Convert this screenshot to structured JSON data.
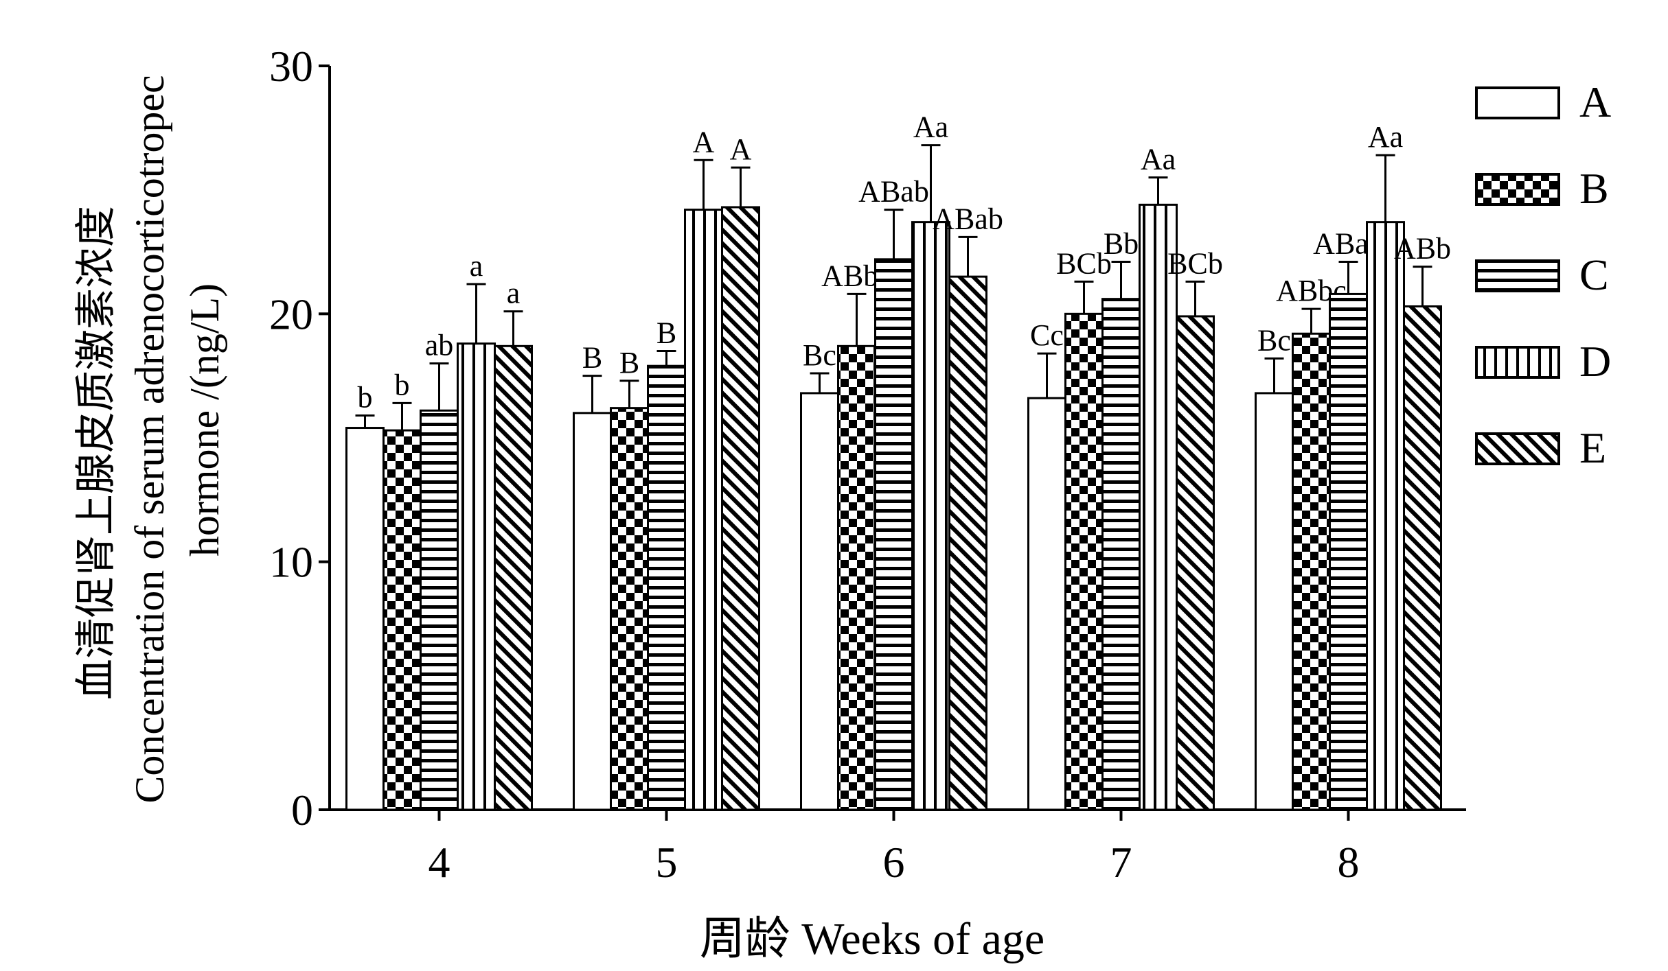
{
  "chart_data": {
    "type": "bar",
    "xlabel": "周龄 Weeks of age",
    "ylabel_cn": "血清促肾上腺皮质激素浓度",
    "ylabel_en_line1": "Concentration of serum adrenocorticotropec",
    "ylabel_en_line2": "hormone /(ng/L)",
    "ylim": [
      0,
      30
    ],
    "yticks": [
      "0",
      "10",
      "20",
      "30"
    ],
    "categories": [
      "4",
      "5",
      "6",
      "7",
      "8"
    ],
    "legend_position": "right",
    "series": [
      {
        "name": "A",
        "pattern": "white",
        "values": [
          15.4,
          16.0,
          16.8,
          16.6,
          16.8
        ],
        "errors": [
          0.5,
          1.5,
          0.8,
          1.8,
          1.4
        ],
        "labels": [
          "b",
          "B",
          "Bc",
          "Cc",
          "Bc"
        ]
      },
      {
        "name": "B",
        "pattern": "checker",
        "values": [
          15.3,
          16.2,
          18.7,
          20.0,
          19.2
        ],
        "errors": [
          1.1,
          1.1,
          2.1,
          1.3,
          1.0
        ],
        "labels": [
          "b",
          "B",
          "ABbc",
          "BCb",
          "ABbc"
        ]
      },
      {
        "name": "C",
        "pattern": "hstripe",
        "values": [
          16.1,
          17.9,
          22.2,
          20.6,
          20.8
        ],
        "errors": [
          1.9,
          0.6,
          2.0,
          1.5,
          1.3
        ],
        "labels": [
          "ab",
          "B",
          "ABab",
          "Bb",
          "ABab"
        ]
      },
      {
        "name": "D",
        "pattern": "vstripe",
        "values": [
          18.8,
          24.2,
          23.7,
          24.4,
          23.7
        ],
        "errors": [
          2.4,
          2.0,
          3.1,
          1.1,
          2.7
        ],
        "labels": [
          "a",
          "A",
          "Aa",
          "Aa",
          "Aa"
        ]
      },
      {
        "name": "E",
        "pattern": "diag",
        "values": [
          18.7,
          24.3,
          21.5,
          19.9,
          20.3
        ],
        "errors": [
          1.4,
          1.6,
          1.6,
          1.4,
          1.6
        ],
        "labels": [
          "a",
          "A",
          "ABab",
          "BCb",
          "ABb"
        ]
      }
    ]
  }
}
